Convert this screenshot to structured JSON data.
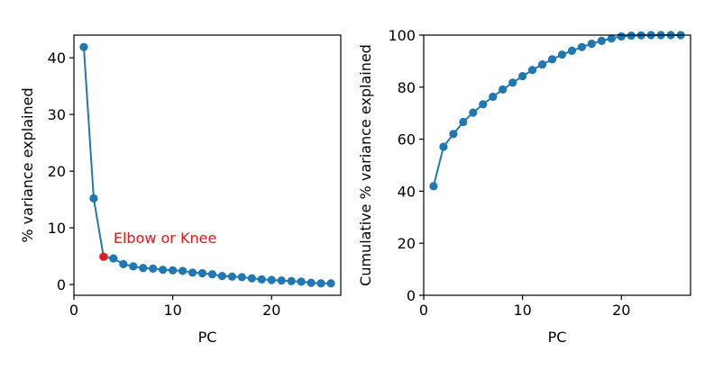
{
  "colors": {
    "series": "#1f77b4",
    "highlight": "#e41a1c",
    "axis": "#000000",
    "background": "#ffffff"
  },
  "chart_data": [
    {
      "type": "line",
      "title": "",
      "xlabel": "PC",
      "ylabel": "% variance explained",
      "xlim": [
        0,
        27
      ],
      "ylim": [
        -1.9,
        44
      ],
      "xticks": [
        0,
        10,
        20
      ],
      "yticks": [
        0,
        10,
        20,
        30,
        40
      ],
      "grid": false,
      "series": [
        {
          "x": [
            1,
            2,
            3,
            4,
            5,
            6,
            7,
            8,
            9,
            10,
            11,
            12,
            13,
            14,
            15,
            16,
            17,
            18,
            19,
            20,
            21,
            22,
            23,
            24,
            25,
            26
          ],
          "y": [
            41.9,
            15.2,
            4.9,
            4.6,
            3.6,
            3.2,
            2.9,
            2.8,
            2.6,
            2.5,
            2.4,
            2.1,
            2.0,
            1.8,
            1.5,
            1.4,
            1.3,
            1.1,
            0.9,
            0.8,
            0.7,
            0.6,
            0.5,
            0.3,
            0.2,
            0.2
          ],
          "marker": "circle"
        }
      ],
      "annotations": [
        {
          "text": "Elbow or Knee",
          "x": 4,
          "y": 7.3,
          "point_x": 3,
          "point_y": 4.9
        }
      ]
    },
    {
      "type": "line",
      "title": "",
      "xlabel": "PC",
      "ylabel": "Cumulative % variance explained",
      "xlim": [
        0,
        27
      ],
      "ylim": [
        0,
        100
      ],
      "xticks": [
        0,
        10,
        20
      ],
      "yticks": [
        0,
        20,
        40,
        60,
        80,
        100
      ],
      "grid": false,
      "series": [
        {
          "x": [
            1,
            2,
            3,
            4,
            5,
            6,
            7,
            8,
            9,
            10,
            11,
            12,
            13,
            14,
            15,
            16,
            17,
            18,
            19,
            20,
            21,
            22,
            23,
            24,
            25,
            26
          ],
          "y": [
            41.9,
            57.1,
            62.0,
            66.6,
            70.2,
            73.4,
            76.3,
            79.1,
            81.7,
            84.2,
            86.6,
            88.7,
            90.7,
            92.5,
            94.0,
            95.4,
            96.7,
            97.8,
            98.7,
            99.5,
            99.8,
            99.9,
            100.0,
            100.0,
            100.0,
            100.0
          ],
          "marker": "circle"
        }
      ],
      "annotations": []
    }
  ]
}
